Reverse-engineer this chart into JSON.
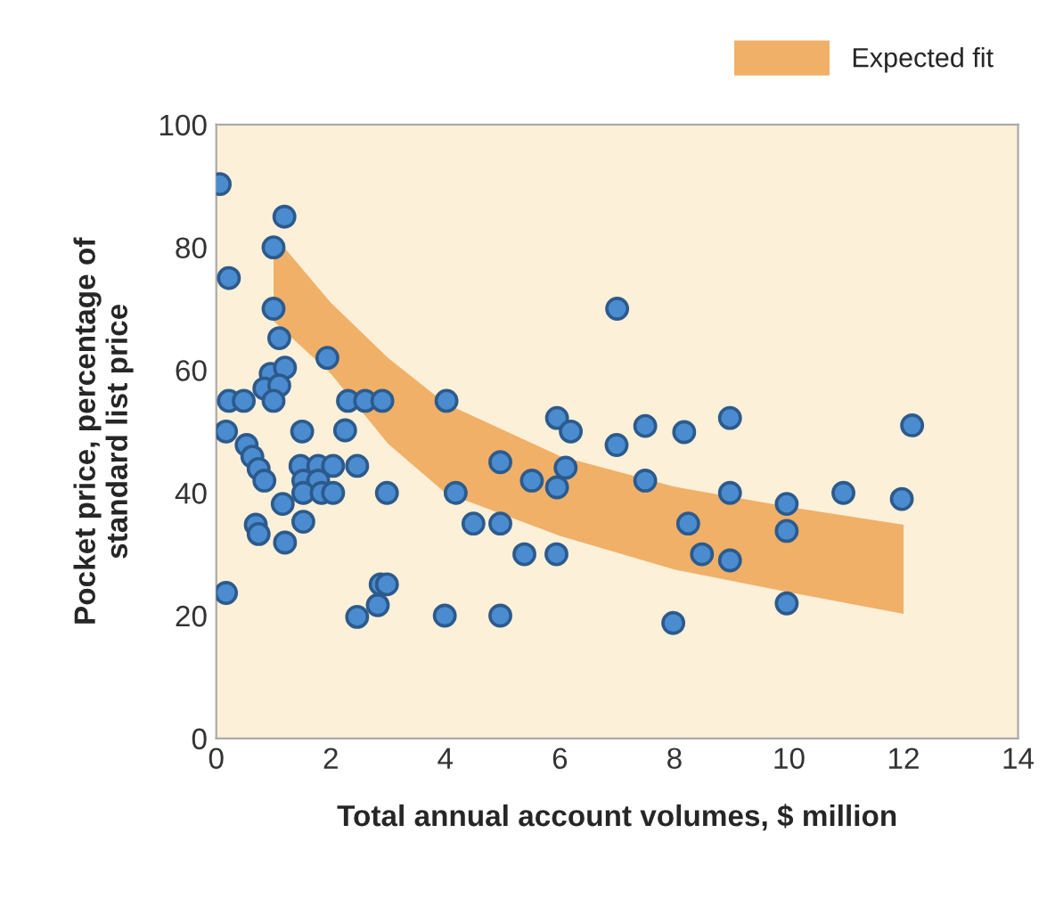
{
  "chart_data": {
    "type": "scatter",
    "xlabel": "Total annual account volumes, $ million",
    "ylabel": "Pocket price, percentage of\nstandard list price",
    "xlim": [
      0,
      14
    ],
    "ylim": [
      0,
      100
    ],
    "xticks": [
      0,
      2,
      4,
      6,
      8,
      10,
      12,
      14
    ],
    "yticks": [
      0,
      20,
      40,
      60,
      80,
      100
    ],
    "grid": false,
    "legend": "top right",
    "marker": "circle",
    "series": [
      {
        "name": "Expected fit",
        "type": "area",
        "color": "#f0b068",
        "x": [
          1,
          2,
          3,
          4,
          6,
          8,
          10,
          12
        ],
        "values": [
          null,
          null,
          null,
          null,
          null,
          null,
          null,
          null
        ],
        "lower": [
          68,
          59.4,
          48,
          40,
          33,
          27.5,
          23.8,
          20.3
        ],
        "upper": [
          82,
          71,
          62,
          54.6,
          46,
          41,
          37.7,
          34.8
        ]
      },
      {
        "color": "#4a8ccf",
        "x": [
          7.0,
          5.95,
          6.19,
          4.96,
          5.51,
          6.1,
          5.95,
          6.99,
          7.49,
          8.17,
          8.97,
          7.49,
          8.97,
          4.49,
          4.96,
          5.38,
          5.94,
          8.24,
          8.48,
          8.97,
          4.96,
          7.98,
          9.96,
          9.96,
          10.95,
          11.97,
          12.15,
          9.96,
          0.06,
          1.19,
          1.0,
          0.22,
          1.0,
          1.1,
          1.94,
          0.95,
          1.2,
          0.84,
          1.1,
          0.22,
          0.48,
          1.0,
          2.3,
          2.6,
          2.9,
          4.02,
          0.17,
          2.25,
          1.5,
          0.53,
          0.63,
          0.74,
          0.84,
          1.47,
          1.78,
          2.04,
          2.46,
          1.52,
          1.78,
          1.52,
          1.84,
          2.04,
          2.98,
          4.18,
          1.16,
          0.69,
          0.74,
          1.2,
          1.52,
          0.17,
          2.87,
          2.98,
          2.82,
          2.46,
          3.99
        ],
        "values": [
          70,
          52.2,
          50,
          45,
          42,
          44.1,
          40.9,
          47.8,
          50.9,
          49.9,
          52.2,
          42,
          40,
          35,
          35,
          30,
          30,
          35,
          30,
          29,
          20,
          18.8,
          38.2,
          33.8,
          40,
          39,
          51,
          22,
          90.3,
          85,
          80,
          75,
          70,
          65.2,
          62,
          59.4,
          60.4,
          57,
          57.5,
          55,
          55,
          55,
          55,
          55,
          55,
          55,
          50,
          50.2,
          50,
          47.8,
          45.9,
          43.9,
          42,
          44.4,
          44.4,
          44.4,
          44.4,
          42,
          42,
          40,
          40,
          40,
          40,
          40,
          38.2,
          34.8,
          33.3,
          31.9,
          35.3,
          23.7,
          25.1,
          25.1,
          21.7,
          19.8,
          20
        ]
      }
    ]
  }
}
